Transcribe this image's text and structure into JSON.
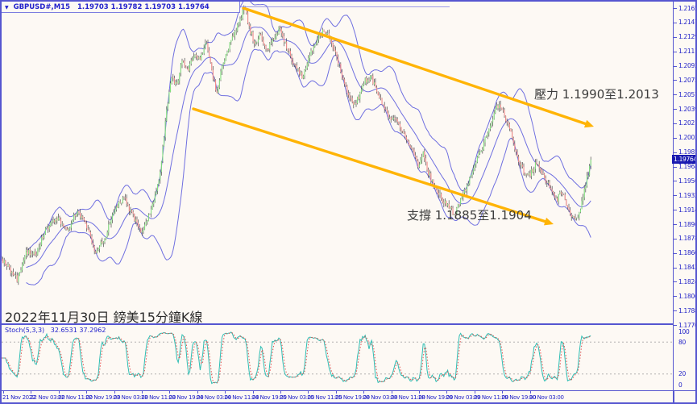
{
  "header": {
    "dropdown_glyph": "▼",
    "symbol": "GBPUSD#,M15",
    "ohlc": "1.19703 1.19782 1.19703 1.19764"
  },
  "colors": {
    "frame": "#5656d0",
    "axis_text": "#2424c8",
    "background": "#fdf9f4",
    "candle_up": "#82df7f",
    "candle_down": "#f28b8b",
    "wick": "#4a4a4a",
    "bollinger": "#6f6fe0",
    "channel": "#ffb405",
    "stoch_main": "#2fbdb3",
    "stoch_signal": "#e0504f",
    "stoch_level": "#a8a8a8",
    "price_tag_bg": "#1a1ab0",
    "price_tag_text": "#ffffff"
  },
  "chart_data": [
    {
      "type": "candlestick",
      "title": "GBPUSD#,M15",
      "open": "1.19703",
      "high": "1.19782",
      "low": "1.19703",
      "close": "1.19764",
      "current_price": "1.19764",
      "ylim": [
        1.17705,
        1.2165
      ],
      "y_axis_labels": [
        "1.21650",
        "1.21470",
        "1.21295",
        "1.21115",
        "1.20935",
        "1.20755",
        "1.20575",
        "1.20395",
        "1.20215",
        "1.20035",
        "1.19855",
        "1.19680",
        "1.19500",
        "1.19320",
        "1.19140",
        "1.18960",
        "1.18780",
        "1.18600",
        "1.18420",
        "1.18240",
        "1.18060",
        "1.17885",
        "1.17705"
      ],
      "x_axis_labels": [
        "21 Nov 2022",
        "22 Nov 03:00",
        "22 Nov 11:00",
        "22 Nov 19:00",
        "23 Nov 03:00",
        "23 Nov 11:00",
        "23 Nov 19:00",
        "24 Nov 03:00",
        "24 Nov 11:00",
        "24 Nov 19:00",
        "25 Nov 03:00",
        "25 Nov 11:00",
        "25 Nov 19:00",
        "28 Nov 03:00",
        "28 Nov 11:00",
        "28 Nov 19:00",
        "29 Nov 03:00",
        "29 Nov 11:00",
        "29 Nov 19:00",
        "30 Nov 03:00"
      ],
      "indicators": [
        "Bollinger Bands"
      ],
      "price_path_anchors": [
        [
          0,
          1.1853
        ],
        [
          10,
          1.184
        ],
        [
          20,
          1.1826
        ],
        [
          30,
          1.1862
        ],
        [
          42,
          1.1858
        ],
        [
          55,
          1.189
        ],
        [
          70,
          1.1904
        ],
        [
          82,
          1.1888
        ],
        [
          93,
          1.1912
        ],
        [
          104,
          1.1898
        ],
        [
          116,
          1.1862
        ],
        [
          128,
          1.1878
        ],
        [
          140,
          1.1916
        ],
        [
          152,
          1.1928
        ],
        [
          163,
          1.1906
        ],
        [
          174,
          1.1884
        ],
        [
          186,
          1.1914
        ],
        [
          196,
          1.1952
        ],
        [
          204,
          1.203
        ],
        [
          211,
          1.2082
        ],
        [
          217,
          1.2068
        ],
        [
          224,
          1.2098
        ],
        [
          231,
          1.2088
        ],
        [
          239,
          1.2108
        ],
        [
          247,
          1.2102
        ],
        [
          254,
          1.2124
        ],
        [
          261,
          1.2086
        ],
        [
          267,
          1.2058
        ],
        [
          274,
          1.2094
        ],
        [
          282,
          1.2118
        ],
        [
          290,
          1.2136
        ],
        [
          297,
          1.2152
        ],
        [
          302,
          1.2167
        ],
        [
          307,
          1.2142
        ],
        [
          314,
          1.212
        ],
        [
          321,
          1.2134
        ],
        [
          329,
          1.2112
        ],
        [
          337,
          1.2126
        ],
        [
          344,
          1.214
        ],
        [
          351,
          1.2122
        ],
        [
          359,
          1.2104
        ],
        [
          367,
          1.2088
        ],
        [
          374,
          1.2078
        ],
        [
          382,
          1.2108
        ],
        [
          391,
          1.2124
        ],
        [
          399,
          1.2138
        ],
        [
          407,
          1.2128
        ],
        [
          414,
          1.211
        ],
        [
          421,
          1.2086
        ],
        [
          429,
          1.2062
        ],
        [
          437,
          1.2044
        ],
        [
          444,
          1.2056
        ],
        [
          451,
          1.2074
        ],
        [
          459,
          1.2078
        ],
        [
          467,
          1.2058
        ],
        [
          474,
          1.2044
        ],
        [
          481,
          1.203
        ],
        [
          489,
          1.2026
        ],
        [
          497,
          1.2012
        ],
        [
          504,
          1.2
        ],
        [
          511,
          1.1988
        ],
        [
          517,
          1.1966
        ],
        [
          523,
          1.1986
        ],
        [
          529,
          1.1962
        ],
        [
          536,
          1.1944
        ],
        [
          542,
          1.1936
        ],
        [
          549,
          1.1924
        ],
        [
          556,
          1.1916
        ],
        [
          562,
          1.1908
        ],
        [
          569,
          1.1924
        ],
        [
          576,
          1.194
        ],
        [
          583,
          1.1958
        ],
        [
          589,
          1.1974
        ],
        [
          596,
          1.199
        ],
        [
          603,
          1.201
        ],
        [
          610,
          1.203
        ],
        [
          617,
          1.2046
        ],
        [
          623,
          1.2034
        ],
        [
          629,
          1.2018
        ],
        [
          635,
          1.1998
        ],
        [
          641,
          1.1978
        ],
        [
          647,
          1.1964
        ],
        [
          653,
          1.1954
        ],
        [
          659,
          1.1964
        ],
        [
          665,
          1.1974
        ],
        [
          671,
          1.1958
        ],
        [
          677,
          1.1948
        ],
        [
          683,
          1.1938
        ],
        [
          689,
          1.1926
        ],
        [
          695,
          1.1938
        ],
        [
          701,
          1.1922
        ],
        [
          707,
          1.1908
        ],
        [
          713,
          1.19
        ],
        [
          719,
          1.1918
        ],
        [
          725,
          1.1948
        ],
        [
          732,
          1.19764
        ]
      ],
      "annotations": [
        {
          "type": "resistance",
          "text": "壓力 1.1990至1.2013",
          "range": [
            1.199,
            1.2013
          ]
        },
        {
          "type": "support",
          "text": "支撐 1.1885至1.1904",
          "range": [
            1.1885,
            1.1904
          ]
        },
        {
          "type": "caption",
          "text": "2022年11月30日 鎊美15分鐘K線"
        }
      ],
      "channel": {
        "top_line": [
          [
            300,
            8
          ],
          [
            735,
            155
          ]
        ],
        "bottom_line": [
          [
            238,
            133
          ],
          [
            685,
            276
          ]
        ]
      }
    },
    {
      "type": "line",
      "title": "Stoch(5,3,3)",
      "values_label": "32.6531 37.2962",
      "final_main": 32.6531,
      "final_signal": 37.2962,
      "ylim": [
        0,
        100
      ],
      "levels": [
        80,
        20
      ],
      "y_axis_labels": [
        "100",
        "80",
        "20",
        "0"
      ],
      "y_axis_values": [
        100,
        80,
        20,
        0
      ]
    }
  ]
}
